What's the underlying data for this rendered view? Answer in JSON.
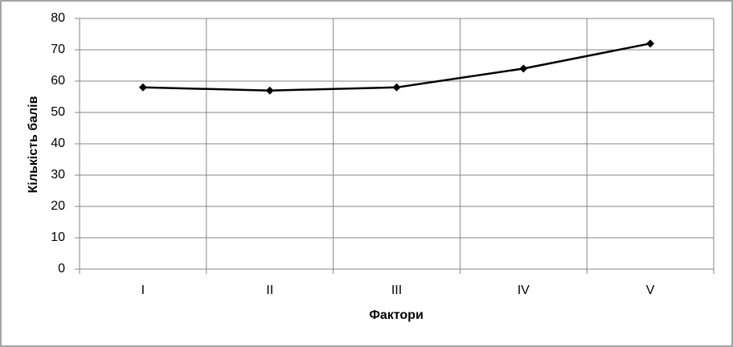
{
  "chart_data": {
    "type": "line",
    "x_label": "Фактори",
    "y_label": "Кількість балів",
    "categories": [
      "I",
      "II",
      "III",
      "IV",
      "V"
    ],
    "values": [
      58,
      57,
      58,
      64,
      72
    ],
    "color": "#000000",
    "ylim": [
      0,
      80
    ],
    "yticks": [
      0,
      10,
      20,
      30,
      40,
      50,
      60,
      70,
      80
    ],
    "grid": true
  }
}
